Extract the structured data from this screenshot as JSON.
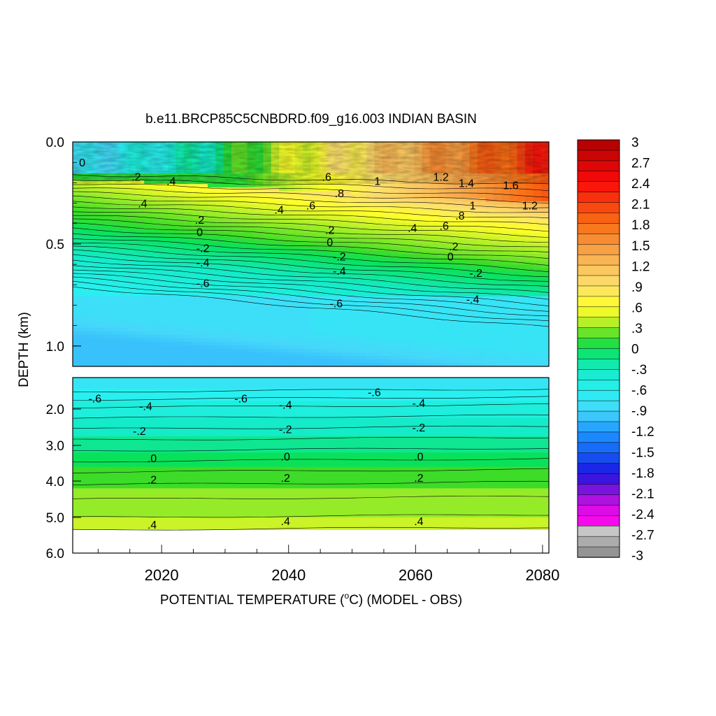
{
  "chart_data": {
    "type": "heatmap",
    "title": "b.e11.BRCP85C5CNBDRD.f09_g16.003 INDIAN BASIN",
    "xlabel": "POTENTIAL TEMPERATURE (",
    "xlabel_unit": "C",
    "xlabel_deg": "o",
    "xlabel_tail": ") (MODEL - OBS)",
    "ylabel": "DEPTH (km)",
    "x_range": [
      2006,
      2081
    ],
    "x_ticks": [
      {
        "value": 2020,
        "label": "2020"
      },
      {
        "value": 2040,
        "label": "2040"
      },
      {
        "value": 2060,
        "label": "2060"
      },
      {
        "value": 2080,
        "label": "2080"
      }
    ],
    "upper_panel": {
      "depth_range_km": [
        0.0,
        1.1
      ],
      "y_ticks": [
        {
          "value": 0.0,
          "label": "0.0"
        },
        {
          "value": 0.5,
          "label": "0.5"
        },
        {
          "value": 1.0,
          "label": "1.0"
        }
      ],
      "contour_labels": [
        {
          "text": "0",
          "year": 2007.5,
          "depth": 0.1
        },
        {
          "text": ".2",
          "year": 2016,
          "depth": 0.17
        },
        {
          "text": ".4",
          "year": 2021.5,
          "depth": 0.19
        },
        {
          "text": ".4",
          "year": 2017,
          "depth": 0.3
        },
        {
          "text": ".6",
          "year": 2046,
          "depth": 0.17
        },
        {
          "text": "1",
          "year": 2054,
          "depth": 0.19
        },
        {
          "text": "1.2",
          "year": 2064,
          "depth": 0.17
        },
        {
          "text": "1.4",
          "year": 2068,
          "depth": 0.2
        },
        {
          "text": "1.6",
          "year": 2075,
          "depth": 0.21
        },
        {
          "text": "1.2",
          "year": 2078,
          "depth": 0.31
        },
        {
          "text": ".8",
          "year": 2048,
          "depth": 0.25
        },
        {
          "text": ".6",
          "year": 2043.5,
          "depth": 0.31
        },
        {
          "text": ".4",
          "year": 2038.5,
          "depth": 0.33
        },
        {
          "text": "1",
          "year": 2069,
          "depth": 0.31
        },
        {
          "text": ".8",
          "year": 2067,
          "depth": 0.36
        },
        {
          "text": ".6",
          "year": 2064.5,
          "depth": 0.41
        },
        {
          "text": ".4",
          "year": 2059.5,
          "depth": 0.42
        },
        {
          "text": ".2",
          "year": 2026,
          "depth": 0.38
        },
        {
          "text": "0",
          "year": 2026,
          "depth": 0.44
        },
        {
          "text": "-.2",
          "year": 2026.5,
          "depth": 0.52
        },
        {
          "text": "-.4",
          "year": 2026.5,
          "depth": 0.59
        },
        {
          "text": "-.6",
          "year": 2026.5,
          "depth": 0.69
        },
        {
          "text": ".2",
          "year": 2046.5,
          "depth": 0.43
        },
        {
          "text": "0",
          "year": 2046.5,
          "depth": 0.49
        },
        {
          "text": "-.2",
          "year": 2048,
          "depth": 0.56
        },
        {
          "text": "-.4",
          "year": 2048,
          "depth": 0.63
        },
        {
          "text": "-.6",
          "year": 2047.5,
          "depth": 0.79
        },
        {
          "text": ".2",
          "year": 2066,
          "depth": 0.51
        },
        {
          "text": "0",
          "year": 2065.5,
          "depth": 0.56
        },
        {
          "text": "-.2",
          "year": 2069.5,
          "depth": 0.64
        },
        {
          "text": "-.4",
          "year": 2069,
          "depth": 0.77
        }
      ]
    },
    "lower_panel": {
      "depth_range_km": [
        1.0,
        6.0
      ],
      "y_ticks": [
        {
          "value": 2.0,
          "label": "2.0"
        },
        {
          "value": 3.0,
          "label": "3.0"
        },
        {
          "value": 4.0,
          "label": "4.0"
        },
        {
          "value": 5.0,
          "label": "5.0"
        },
        {
          "value": 6.0,
          "label": "6.0"
        }
      ],
      "contour_labels": [
        {
          "text": "-.6",
          "year": 2009.5,
          "depth": 1.65
        },
        {
          "text": "-.6",
          "year": 2032.5,
          "depth": 1.65
        },
        {
          "text": "-.6",
          "year": 2053.5,
          "depth": 1.45
        },
        {
          "text": "-.4",
          "year": 2017.5,
          "depth": 1.9
        },
        {
          "text": "-.4",
          "year": 2039.5,
          "depth": 1.85
        },
        {
          "text": "-.4",
          "year": 2060.5,
          "depth": 1.8
        },
        {
          "text": "-.2",
          "year": 2016.5,
          "depth": 2.6
        },
        {
          "text": "-.2",
          "year": 2039.5,
          "depth": 2.55
        },
        {
          "text": "-.2",
          "year": 2060.5,
          "depth": 2.5
        },
        {
          "text": ".0",
          "year": 2018.5,
          "depth": 3.35
        },
        {
          "text": ".0",
          "year": 2039.5,
          "depth": 3.3
        },
        {
          "text": ".0",
          "year": 2060.5,
          "depth": 3.3
        },
        {
          "text": ".2",
          "year": 2018.5,
          "depth": 3.95
        },
        {
          "text": ".2",
          "year": 2039.5,
          "depth": 3.9
        },
        {
          "text": ".2",
          "year": 2060.5,
          "depth": 3.9
        },
        {
          "text": ".4",
          "year": 2018.5,
          "depth": 5.2
        },
        {
          "text": ".4",
          "year": 2039.5,
          "depth": 5.1
        },
        {
          "text": ".4",
          "year": 2060.5,
          "depth": 5.1
        }
      ]
    },
    "colorbar": {
      "min": -3,
      "max": 3,
      "labels": [
        "3",
        "2.7",
        "2.4",
        "2.1",
        "1.8",
        "1.5",
        "1.2",
        ".9",
        ".6",
        ".3",
        "0",
        "-.3",
        "-.6",
        "-.9",
        "-1.2",
        "-1.5",
        "-1.8",
        "-2.1",
        "-2.4",
        "-2.7",
        "-3"
      ]
    }
  }
}
